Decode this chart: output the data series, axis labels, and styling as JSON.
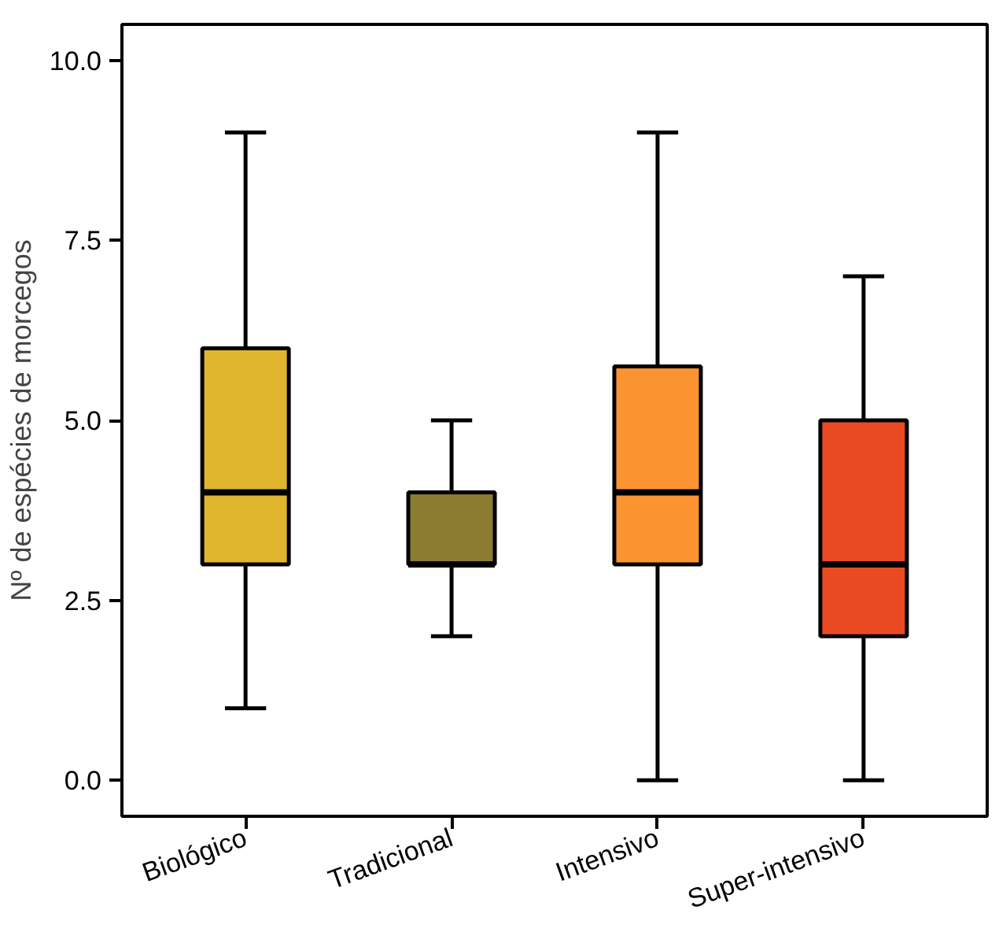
{
  "chart_data": {
    "type": "box",
    "ylabel": "Nº de espécies de morcegos",
    "categories": [
      "Biológico",
      "Tradicional",
      "Intensivo",
      "Super-intensivo"
    ],
    "boxes": [
      {
        "low": 1,
        "q1": 3,
        "median": 4,
        "q3": 6,
        "high": 9
      },
      {
        "low": 2,
        "q1": 3,
        "median": 3,
        "q3": 4,
        "high": 5
      },
      {
        "low": 0,
        "q1": 3,
        "median": 4,
        "q3": 5.75,
        "high": 9
      },
      {
        "low": 0,
        "q1": 2,
        "median": 3,
        "q3": 5,
        "high": 7
      }
    ],
    "colors": [
      "#e0b62e",
      "#8c7c30",
      "#fb9330",
      "#ea4a22"
    ],
    "ylim": [
      -0.5,
      10.5
    ],
    "yticks": [
      {
        "value": 0,
        "label": "0.0"
      },
      {
        "value": 2.5,
        "label": "2.5"
      },
      {
        "value": 5,
        "label": "5.0"
      },
      {
        "value": 7.5,
        "label": "7.5"
      },
      {
        "value": 10,
        "label": "10.0"
      }
    ],
    "grid": false
  }
}
